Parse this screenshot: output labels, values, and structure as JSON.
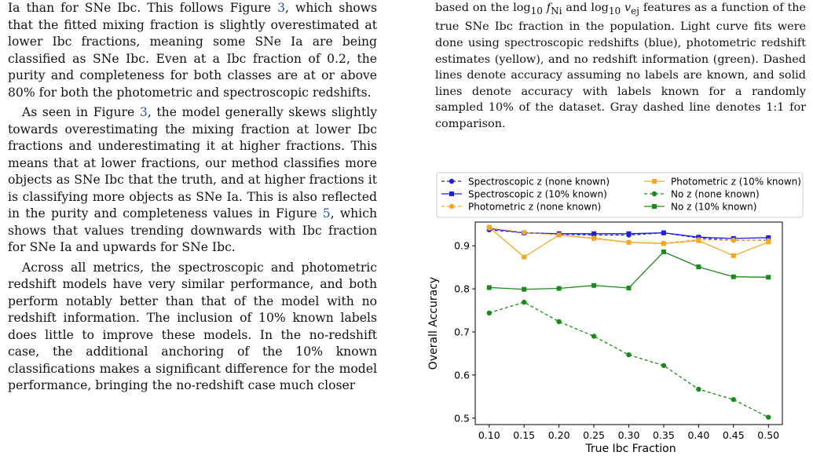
{
  "left_column": {
    "para1_a": "Ia than for SNe Ibc. This follows Figure ",
    "para1_ref": "3",
    "para1_b": ", which shows that the fitted mixing fraction is slightly overestimated at lower Ibc fractions, meaning some SNe Ia are being classified as SNe Ibc. Even at a Ibc fraction of 0.2, the purity and completeness for both classes are at or above 80% for both the photometric and spectroscopic redshifts.",
    "para2_a": "As seen in Figure ",
    "para2_ref": "3",
    "para2_b": ", the model generally skews slightly towards overestimating the mixing fraction at lower Ibc fractions and underestimating it at higher fractions. This means that at lower fractions, our method classifies more objects as SNe Ibc that the truth, and at higher fractions it is classifying more objects as SNe Ia. This is also reflected in the purity and completeness values in Figure ",
    "para2_ref2": "5",
    "para2_c": ", which shows that values trending downwards with Ibc fraction for SNe Ia and upwards for SNe Ibc.",
    "para3": "Across all metrics, the spectroscopic and photometric redshift models have very similar performance, and both perform notably better than that of the model with no redshift information. The inclusion of 10% known labels does little to improve these models. In the no-redshift case, the additional anchoring of the 10% known classifications makes a significant difference for the model performance, bringing the no-redshift case much closer"
  },
  "caption": {
    "line1_a": "based on the log",
    "line1_sub1": "10",
    "line1_b": " f",
    "line1_sub2": "Ni",
    "line1_c": " and log",
    "line1_sub3": "10",
    "line1_d": " v",
    "line1_sub4": "ej",
    "line1_e": " features as a function",
    "rest": "of the true SNe Ibc fraction in the population. Light curve fits were done using spectroscopic redshifts (blue), photometric redshift estimates (yellow), and no redshift information (green). Dashed lines denote accuracy assuming no labels are known, and solid lines denote accuracy with labels known for a randomly sampled 10% of the dataset. Gray dashed line denotes 1:1 for comparison."
  },
  "chart_data": {
    "type": "line",
    "xlabel": "True Ibc Fraction",
    "ylabel": "Overall Accuracy",
    "x": [
      0.1,
      0.15,
      0.2,
      0.25,
      0.3,
      0.35,
      0.4,
      0.45,
      0.5
    ],
    "x_ticks": [
      "0.10",
      "0.15",
      "0.20",
      "0.25",
      "0.30",
      "0.35",
      "0.40",
      "0.45",
      "0.50"
    ],
    "y_ticks": [
      "0.5",
      "0.6",
      "0.7",
      "0.8",
      "0.9"
    ],
    "xlim": [
      0.08,
      0.52
    ],
    "ylim": [
      0.485,
      0.955
    ],
    "grid": false,
    "legend_position": "top",
    "series": [
      {
        "name": "Spectroscopic z (none known)",
        "color": "#1f1fe6",
        "dashed": true,
        "marker": "circle",
        "values": [
          0.937,
          0.93,
          0.927,
          0.925,
          0.925,
          0.93,
          0.918,
          0.913,
          0.913
        ]
      },
      {
        "name": "Spectroscopic z (10% known)",
        "color": "#1f1fe6",
        "dashed": false,
        "marker": "square",
        "values": [
          0.94,
          0.93,
          0.928,
          0.928,
          0.928,
          0.93,
          0.92,
          0.917,
          0.919
        ]
      },
      {
        "name": "Photometric z (none known)",
        "color": "#f5a623",
        "dashed": true,
        "marker": "circle",
        "values": [
          0.941,
          0.931,
          0.925,
          0.918,
          0.908,
          0.906,
          0.914,
          0.913,
          0.912
        ]
      },
      {
        "name": "Photometric z (10% known)",
        "color": "#f5a623",
        "dashed": false,
        "marker": "square",
        "values": [
          0.943,
          0.874,
          0.925,
          0.917,
          0.908,
          0.905,
          0.912,
          0.877,
          0.909
        ]
      },
      {
        "name": "No z (none known)",
        "color": "#1a8a1a",
        "dashed": true,
        "marker": "circle",
        "values": [
          0.744,
          0.769,
          0.724,
          0.69,
          0.647,
          0.622,
          0.567,
          0.543,
          0.502
        ]
      },
      {
        "name": "No z (10% known)",
        "color": "#1a8a1a",
        "dashed": false,
        "marker": "square",
        "values": [
          0.803,
          0.799,
          0.801,
          0.808,
          0.802,
          0.886,
          0.851,
          0.828,
          0.827
        ]
      }
    ]
  }
}
